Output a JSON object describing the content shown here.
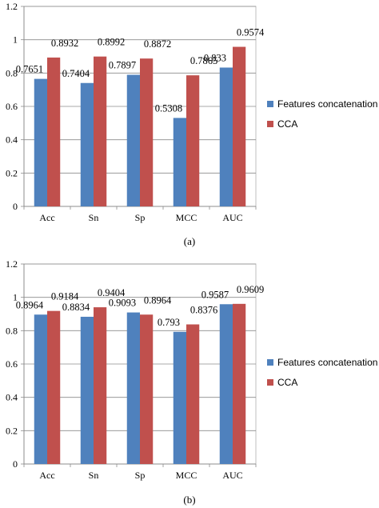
{
  "chart_data": [
    {
      "type": "bar",
      "caption": "(a)",
      "categories": [
        "Acc",
        "Sn",
        "Sp",
        "MCC",
        "AUC"
      ],
      "series": [
        {
          "name": "Features concatenation",
          "values": [
            0.7651,
            0.7404,
            0.7897,
            0.5308,
            0.833
          ],
          "labels": [
            "0.7651",
            "0.7404",
            "0.7897",
            "0.5308",
            "0.833"
          ],
          "color": "#4F81BD"
        },
        {
          "name": "CCA",
          "values": [
            0.8932,
            0.8992,
            0.8872,
            0.7865,
            0.9574
          ],
          "labels": [
            "0.8932",
            "0.8992",
            "0.8872",
            "0.7865",
            "0.9574"
          ],
          "color": "#C0504D"
        }
      ],
      "yticks": [
        "0",
        "0.2",
        "0.4",
        "0.6",
        "0.8",
        "1",
        "1.2"
      ],
      "ylim": [
        0,
        1.2
      ],
      "grid": true,
      "legend_position": "right"
    },
    {
      "type": "bar",
      "caption": "(b)",
      "categories": [
        "Acc",
        "Sn",
        "Sp",
        "MCC",
        "AUC"
      ],
      "series": [
        {
          "name": "Features concatenation",
          "values": [
            0.8964,
            0.8834,
            0.9093,
            0.793,
            0.9587
          ],
          "labels": [
            "0.8964",
            "0.8834",
            "0.9093",
            "0.793",
            "0.9587"
          ],
          "color": "#4F81BD"
        },
        {
          "name": "CCA",
          "values": [
            0.9184,
            0.9404,
            0.8964,
            0.8376,
            0.9609
          ],
          "labels": [
            "0.9184",
            "0.9404",
            "0.8964",
            "0.8376",
            "0.9609"
          ],
          "color": "#C0504D"
        }
      ],
      "yticks": [
        "0",
        "0.2",
        "0.4",
        "0.6",
        "0.8",
        "1",
        "1.2"
      ],
      "ylim": [
        0,
        1.2
      ],
      "grid": true,
      "legend_position": "right"
    }
  ]
}
